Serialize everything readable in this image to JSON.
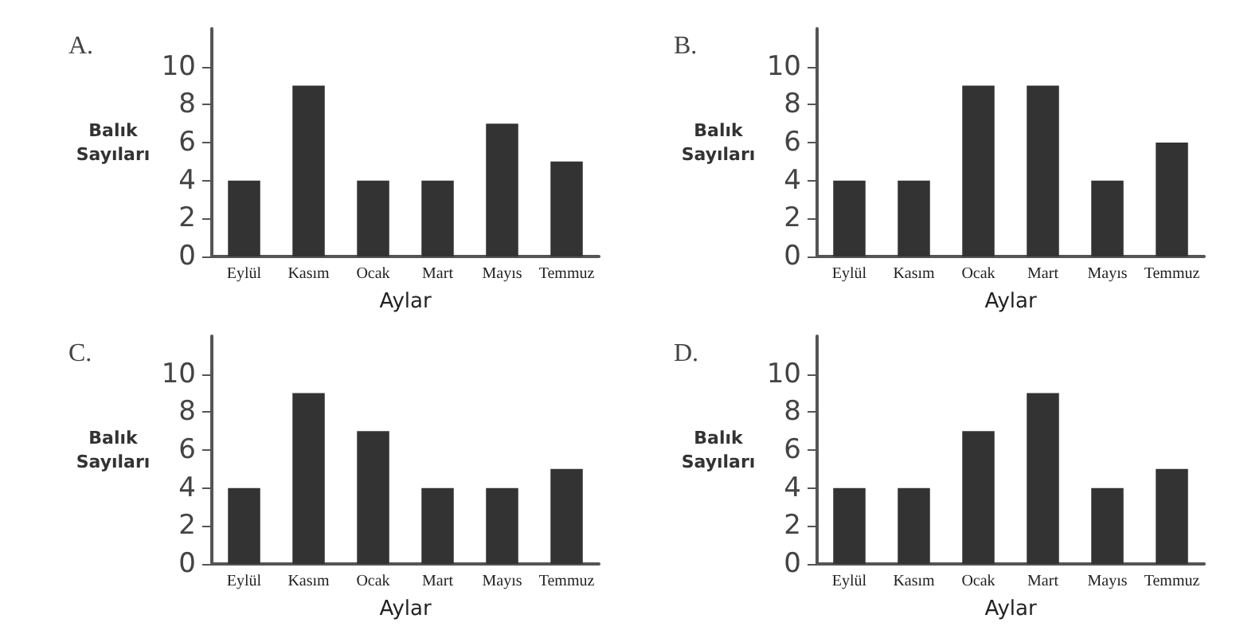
{
  "chart_data": [
    {
      "type": "bar",
      "title": "A.",
      "xlabel": "Aylar",
      "ylabel": "Balık\nSayıları",
      "categories": [
        "Eylül",
        "Kasım",
        "Ocak",
        "Mart",
        "Mayıs",
        "Temmuz"
      ],
      "values": [
        4,
        9,
        4,
        4,
        7,
        5
      ],
      "color": "#333333",
      "ylim": [
        0,
        12
      ],
      "yticks": [
        0,
        2,
        4,
        6,
        8,
        10
      ],
      "grid": false
    },
    {
      "type": "bar",
      "title": "B.",
      "xlabel": "Aylar",
      "ylabel": "Balık\nSayıları",
      "categories": [
        "Eylül",
        "Kasım",
        "Ocak",
        "Mart",
        "Mayıs",
        "Temmuz"
      ],
      "values": [
        4,
        4,
        9,
        9,
        4,
        6
      ],
      "color": "#333333",
      "ylim": [
        0,
        12
      ],
      "yticks": [
        0,
        2,
        4,
        6,
        8,
        10
      ],
      "grid": false
    },
    {
      "type": "bar",
      "title": "C.",
      "xlabel": "Aylar",
      "ylabel": "Balık\nSayıları",
      "categories": [
        "Eylül",
        "Kasım",
        "Ocak",
        "Mart",
        "Mayıs",
        "Temmuz"
      ],
      "values": [
        4,
        9,
        7,
        4,
        4,
        5
      ],
      "color": "#333333",
      "ylim": [
        0,
        12
      ],
      "yticks": [
        0,
        2,
        4,
        6,
        8,
        10
      ],
      "grid": false
    },
    {
      "type": "bar",
      "title": "D.",
      "xlabel": "Aylar",
      "ylabel": "Balık\nSayıları",
      "categories": [
        "Eylül",
        "Kasım",
        "Ocak",
        "Mart",
        "Mayıs",
        "Temmuz"
      ],
      "values": [
        4,
        4,
        7,
        9,
        4,
        5
      ],
      "color": "#333333",
      "ylim": [
        0,
        12
      ],
      "yticks": [
        0,
        2,
        4,
        6,
        8,
        10
      ],
      "grid": false
    }
  ]
}
